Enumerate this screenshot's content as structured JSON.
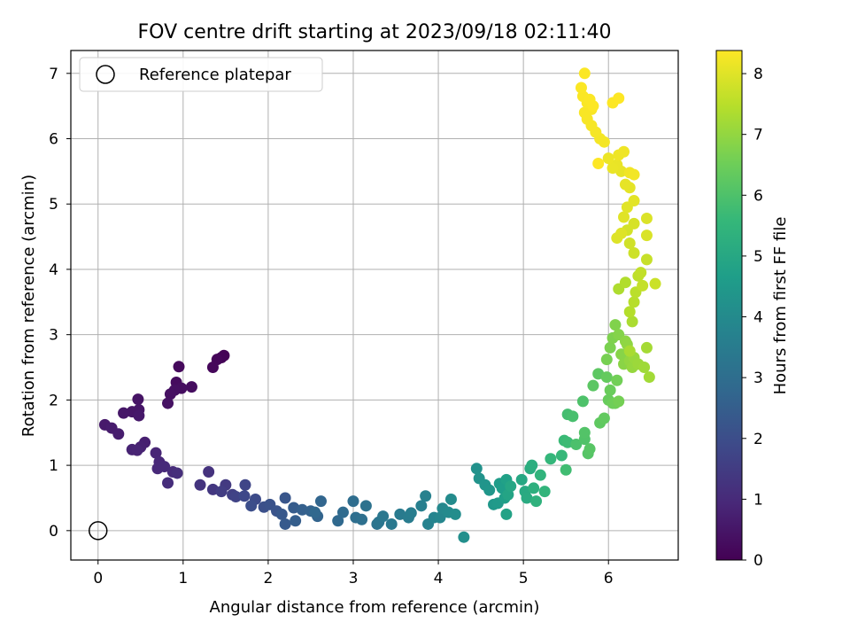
{
  "chart_data": {
    "type": "scatter",
    "title": "FOV centre drift starting at 2023/09/18 02:11:40",
    "xlabel": "Angular distance from reference (arcmin)",
    "ylabel": "Rotation from reference (arcmin)",
    "xlim": [
      -0.32,
      6.82
    ],
    "ylim": [
      -0.45,
      7.35
    ],
    "xticks": [
      0,
      1,
      2,
      3,
      4,
      5,
      6
    ],
    "yticks": [
      0,
      1,
      2,
      3,
      4,
      5,
      6,
      7
    ],
    "grid": true,
    "legend": {
      "position": "top-left",
      "entries": [
        "Reference platepar"
      ]
    },
    "reference_point": {
      "x": 0,
      "y": 0,
      "marker": "open-circle"
    },
    "colorbar": {
      "label": "Hours from first FF file",
      "colormap": "viridis",
      "range": [
        0,
        8.38
      ],
      "ticks": [
        0,
        1,
        2,
        3,
        4,
        5,
        6,
        7,
        8
      ]
    },
    "colormap_stops": [
      "#440154",
      "#482878",
      "#3e4989",
      "#31688e",
      "#26828e",
      "#1f9e89",
      "#35b779",
      "#6ece58",
      "#b5de2b",
      "#fde725"
    ],
    "series": [
      {
        "points": [
          [
            1.48,
            2.68,
            0.05
          ],
          [
            1.45,
            2.65,
            0.08
          ],
          [
            1.4,
            2.62,
            0.12
          ],
          [
            1.35,
            2.5,
            0.15
          ],
          [
            0.95,
            2.51,
            0.2
          ],
          [
            0.92,
            2.27,
            0.25
          ],
          [
            1.1,
            2.2,
            0.28
          ],
          [
            0.98,
            2.18,
            0.3
          ],
          [
            0.9,
            2.15,
            0.33
          ],
          [
            0.85,
            2.09,
            0.36
          ],
          [
            0.82,
            1.95,
            0.4
          ],
          [
            0.47,
            2.01,
            0.45
          ],
          [
            0.48,
            1.85,
            0.48
          ],
          [
            0.4,
            1.82,
            0.5
          ],
          [
            0.3,
            1.8,
            0.53
          ],
          [
            0.48,
            1.76,
            0.56
          ],
          [
            0.08,
            1.62,
            0.6
          ],
          [
            0.16,
            1.57,
            0.64
          ],
          [
            0.24,
            1.48,
            0.68
          ],
          [
            0.55,
            1.35,
            0.72
          ],
          [
            0.5,
            1.28,
            0.76
          ],
          [
            0.4,
            1.24,
            0.8
          ],
          [
            0.46,
            1.23,
            0.84
          ],
          [
            0.68,
            1.19,
            0.88
          ],
          [
            0.72,
            1.05,
            0.92
          ],
          [
            0.7,
            0.95,
            0.96
          ],
          [
            0.78,
            0.98,
            1.0
          ],
          [
            0.88,
            0.9,
            1.04
          ],
          [
            0.82,
            0.73,
            1.08
          ],
          [
            0.93,
            0.88,
            1.12
          ],
          [
            1.3,
            0.9,
            1.2
          ],
          [
            1.2,
            0.7,
            1.28
          ],
          [
            1.35,
            0.63,
            1.36
          ],
          [
            1.5,
            0.7,
            1.44
          ],
          [
            1.45,
            0.6,
            1.52
          ],
          [
            1.58,
            0.55,
            1.6
          ],
          [
            1.62,
            0.52,
            1.68
          ],
          [
            1.73,
            0.7,
            1.76
          ],
          [
            1.72,
            0.53,
            1.84
          ],
          [
            1.85,
            0.48,
            1.92
          ],
          [
            1.8,
            0.38,
            2.0
          ],
          [
            1.95,
            0.36,
            2.06
          ],
          [
            2.02,
            0.4,
            2.12
          ],
          [
            2.1,
            0.3,
            2.18
          ],
          [
            2.2,
            0.5,
            2.24
          ],
          [
            2.16,
            0.25,
            2.3
          ],
          [
            2.2,
            0.1,
            2.36
          ],
          [
            2.3,
            0.35,
            2.42
          ],
          [
            2.32,
            0.15,
            2.48
          ],
          [
            2.4,
            0.32,
            2.54
          ],
          [
            2.5,
            0.3,
            2.6
          ],
          [
            2.58,
            0.22,
            2.66
          ],
          [
            2.62,
            0.45,
            2.72
          ],
          [
            2.55,
            0.28,
            2.78
          ],
          [
            2.82,
            0.15,
            2.84
          ],
          [
            2.88,
            0.28,
            2.9
          ],
          [
            3.0,
            0.45,
            2.96
          ],
          [
            3.03,
            0.2,
            3.02
          ],
          [
            3.1,
            0.17,
            3.08
          ],
          [
            3.15,
            0.38,
            3.14
          ],
          [
            3.28,
            0.1,
            3.2
          ],
          [
            3.3,
            0.13,
            3.26
          ],
          [
            3.35,
            0.22,
            3.32
          ],
          [
            3.45,
            0.1,
            3.38
          ],
          [
            3.55,
            0.25,
            3.44
          ],
          [
            3.65,
            0.2,
            3.5
          ],
          [
            3.68,
            0.27,
            3.56
          ],
          [
            3.8,
            0.38,
            3.62
          ],
          [
            3.85,
            0.53,
            3.68
          ],
          [
            3.88,
            0.1,
            3.74
          ],
          [
            3.95,
            0.2,
            3.8
          ],
          [
            4.02,
            0.2,
            3.86
          ],
          [
            4.05,
            0.34,
            3.92
          ],
          [
            4.12,
            0.28,
            3.98
          ],
          [
            4.15,
            0.48,
            4.04
          ],
          [
            4.2,
            0.25,
            4.1
          ],
          [
            4.3,
            -0.1,
            4.16
          ],
          [
            4.45,
            0.95,
            4.22
          ],
          [
            4.48,
            0.8,
            4.28
          ],
          [
            4.55,
            0.7,
            4.34
          ],
          [
            4.6,
            0.62,
            4.4
          ],
          [
            4.65,
            0.4,
            4.46
          ],
          [
            4.7,
            0.42,
            4.52
          ],
          [
            4.72,
            0.72,
            4.58
          ],
          [
            4.75,
            0.65,
            4.64
          ],
          [
            4.78,
            0.5,
            4.7
          ],
          [
            4.8,
            0.78,
            4.76
          ],
          [
            4.8,
            0.25,
            4.82
          ],
          [
            4.82,
            0.55,
            4.88
          ],
          [
            4.85,
            0.68,
            4.94
          ],
          [
            4.98,
            0.78,
            5.0
          ],
          [
            5.02,
            0.6,
            5.06
          ],
          [
            5.04,
            0.5,
            5.12
          ],
          [
            5.08,
            0.95,
            5.18
          ],
          [
            5.1,
            1.0,
            5.24
          ],
          [
            5.12,
            0.65,
            5.3
          ],
          [
            5.15,
            0.45,
            5.36
          ],
          [
            5.2,
            0.85,
            5.42
          ],
          [
            5.25,
            0.6,
            5.48
          ],
          [
            5.32,
            1.1,
            5.54
          ],
          [
            5.45,
            1.15,
            5.6
          ],
          [
            5.48,
            1.38,
            5.66
          ],
          [
            5.52,
            1.35,
            5.72
          ],
          [
            5.5,
            0.93,
            5.78
          ],
          [
            5.52,
            1.78,
            5.84
          ],
          [
            5.58,
            1.75,
            5.9
          ],
          [
            5.62,
            1.32,
            5.96
          ],
          [
            5.7,
            1.98,
            6.0
          ],
          [
            5.72,
            1.4,
            6.04
          ],
          [
            5.72,
            1.5,
            6.08
          ],
          [
            5.76,
            1.18,
            6.12
          ],
          [
            5.78,
            1.25,
            6.16
          ],
          [
            5.82,
            2.22,
            6.2
          ],
          [
            5.88,
            2.4,
            6.24
          ],
          [
            5.9,
            1.65,
            6.28
          ],
          [
            5.95,
            1.72,
            6.32
          ],
          [
            5.98,
            2.35,
            6.36
          ],
          [
            6.0,
            2.0,
            6.4
          ],
          [
            6.02,
            2.15,
            6.44
          ],
          [
            6.05,
            1.95,
            6.48
          ],
          [
            6.08,
            1.95,
            6.52
          ],
          [
            6.1,
            2.3,
            6.56
          ],
          [
            6.12,
            1.98,
            6.6
          ],
          [
            5.98,
            2.62,
            6.64
          ],
          [
            6.02,
            2.8,
            6.68
          ],
          [
            6.05,
            2.95,
            6.72
          ],
          [
            6.08,
            3.15,
            6.76
          ],
          [
            6.12,
            3.0,
            6.8
          ],
          [
            6.15,
            2.7,
            6.84
          ],
          [
            6.18,
            2.55,
            6.88
          ],
          [
            6.2,
            2.9,
            6.92
          ],
          [
            6.22,
            2.85,
            6.96
          ],
          [
            6.25,
            2.6,
            7.0
          ],
          [
            6.28,
            2.5,
            7.04
          ],
          [
            6.3,
            2.65,
            7.08
          ],
          [
            6.35,
            2.55,
            7.12
          ],
          [
            6.42,
            2.5,
            7.16
          ],
          [
            6.48,
            2.35,
            7.2
          ],
          [
            6.45,
            2.8,
            7.24
          ],
          [
            6.25,
            2.75,
            7.28
          ],
          [
            6.28,
            3.2,
            7.32
          ],
          [
            6.12,
            3.7,
            7.36
          ],
          [
            6.2,
            3.8,
            7.4
          ],
          [
            6.25,
            3.35,
            7.44
          ],
          [
            6.3,
            3.5,
            7.48
          ],
          [
            6.32,
            3.65,
            7.52
          ],
          [
            6.35,
            3.9,
            7.56
          ],
          [
            6.38,
            3.95,
            7.6
          ],
          [
            6.4,
            3.75,
            7.64
          ],
          [
            6.45,
            4.15,
            7.68
          ],
          [
            6.55,
            3.78,
            7.72
          ],
          [
            6.3,
            4.25,
            7.76
          ],
          [
            6.25,
            4.4,
            7.8
          ],
          [
            6.22,
            4.6,
            7.84
          ],
          [
            6.3,
            4.7,
            7.88
          ],
          [
            6.45,
            4.52,
            7.92
          ],
          [
            6.45,
            4.78,
            7.94
          ],
          [
            6.1,
            4.48,
            7.96
          ],
          [
            6.15,
            4.55,
            7.98
          ],
          [
            6.18,
            4.8,
            8.0
          ],
          [
            6.22,
            4.95,
            8.02
          ],
          [
            6.3,
            5.05,
            8.04
          ],
          [
            6.25,
            5.25,
            8.06
          ],
          [
            6.2,
            5.3,
            8.08
          ],
          [
            6.15,
            5.5,
            8.1
          ],
          [
            6.1,
            5.6,
            8.12
          ],
          [
            6.05,
            5.55,
            8.14
          ],
          [
            6.0,
            5.7,
            8.16
          ],
          [
            6.12,
            5.75,
            8.18
          ],
          [
            6.18,
            5.8,
            8.2
          ],
          [
            6.25,
            5.48,
            8.22
          ],
          [
            6.3,
            5.45,
            8.24
          ],
          [
            5.95,
            5.95,
            8.26
          ],
          [
            5.9,
            6.0,
            8.27
          ],
          [
            5.85,
            6.1,
            8.28
          ],
          [
            5.8,
            6.2,
            8.29
          ],
          [
            5.75,
            6.3,
            8.3
          ],
          [
            5.72,
            6.4,
            8.31
          ],
          [
            5.8,
            6.45,
            8.32
          ],
          [
            5.75,
            6.55,
            8.33
          ],
          [
            5.7,
            6.65,
            8.34
          ],
          [
            5.68,
            6.78,
            8.35
          ],
          [
            5.72,
            7.0,
            8.36
          ],
          [
            5.78,
            6.6,
            8.36
          ],
          [
            5.82,
            6.5,
            8.37
          ],
          [
            6.05,
            6.55,
            8.37
          ],
          [
            6.12,
            6.62,
            8.38
          ],
          [
            5.88,
            5.62,
            8.38
          ]
        ]
      }
    ]
  }
}
